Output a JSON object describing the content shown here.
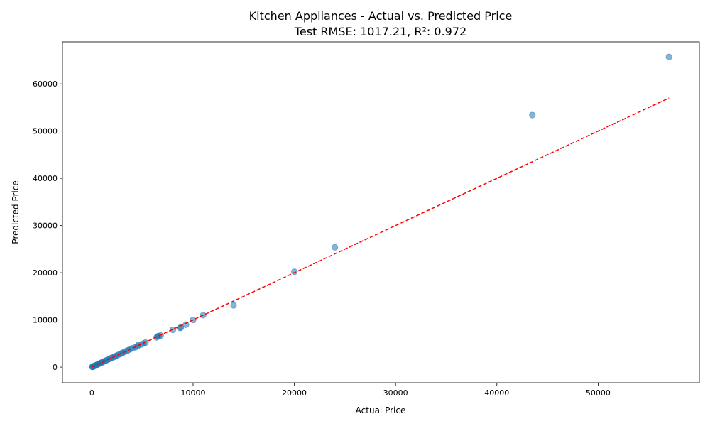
{
  "chart_data": {
    "type": "scatter",
    "title": "Kitchen Appliances - Actual vs. Predicted Price",
    "subtitle": "Test RMSE: 1017.21, R²: 0.972",
    "xlabel": "Actual Price",
    "ylabel": "Predicted Price",
    "xlim": [
      -2900,
      60000
    ],
    "ylim": [
      -3300,
      68900
    ],
    "xticks": [
      0,
      10000,
      20000,
      30000,
      40000,
      50000
    ],
    "yticks": [
      0,
      10000,
      20000,
      30000,
      40000,
      50000,
      60000
    ],
    "xtick_labels": [
      "0",
      "10000",
      "20000",
      "30000",
      "40000",
      "50000"
    ],
    "ytick_labels": [
      "0",
      "10000",
      "20000",
      "30000",
      "40000",
      "50000",
      "60000"
    ],
    "grid": false,
    "point_color": "#1f77b4",
    "point_alpha": 0.55,
    "reference_line": {
      "style": "dashed",
      "color": "#ff0000",
      "from": [
        0,
        0
      ],
      "to": [
        57000,
        57000
      ]
    },
    "points": [
      [
        57000,
        65700
      ],
      [
        43500,
        53400
      ],
      [
        24000,
        25400
      ],
      [
        20000,
        20200
      ],
      [
        14000,
        13100
      ],
      [
        11000,
        11000
      ],
      [
        10000,
        10000
      ],
      [
        9300,
        9000
      ],
      [
        8800,
        8400
      ],
      [
        8700,
        8300
      ],
      [
        8000,
        7900
      ],
      [
        6800,
        6700
      ],
      [
        6600,
        6600
      ],
      [
        6500,
        6500
      ],
      [
        6400,
        6300
      ],
      [
        5300,
        5200
      ],
      [
        5100,
        5000
      ],
      [
        4900,
        4800
      ],
      [
        4600,
        4700
      ],
      [
        4500,
        4400
      ],
      [
        4300,
        4200
      ],
      [
        4000,
        4000
      ],
      [
        3800,
        3800
      ],
      [
        3600,
        3600
      ],
      [
        3400,
        3400
      ],
      [
        3200,
        3200
      ],
      [
        3000,
        3000
      ],
      [
        2900,
        2850
      ],
      [
        2700,
        2700
      ],
      [
        2500,
        2500
      ],
      [
        2300,
        2300
      ],
      [
        2200,
        2150
      ],
      [
        2000,
        2000
      ],
      [
        1850,
        1850
      ],
      [
        1700,
        1700
      ],
      [
        1550,
        1550
      ],
      [
        1400,
        1400
      ],
      [
        1250,
        1250
      ],
      [
        1100,
        1100
      ],
      [
        1000,
        1000
      ],
      [
        900,
        900
      ],
      [
        800,
        800
      ],
      [
        700,
        700
      ],
      [
        600,
        600
      ],
      [
        500,
        500
      ],
      [
        400,
        400
      ],
      [
        300,
        300
      ],
      [
        250,
        250
      ],
      [
        200,
        200
      ],
      [
        150,
        150
      ],
      [
        100,
        100
      ],
      [
        80,
        80
      ],
      [
        50,
        50
      ]
    ]
  }
}
